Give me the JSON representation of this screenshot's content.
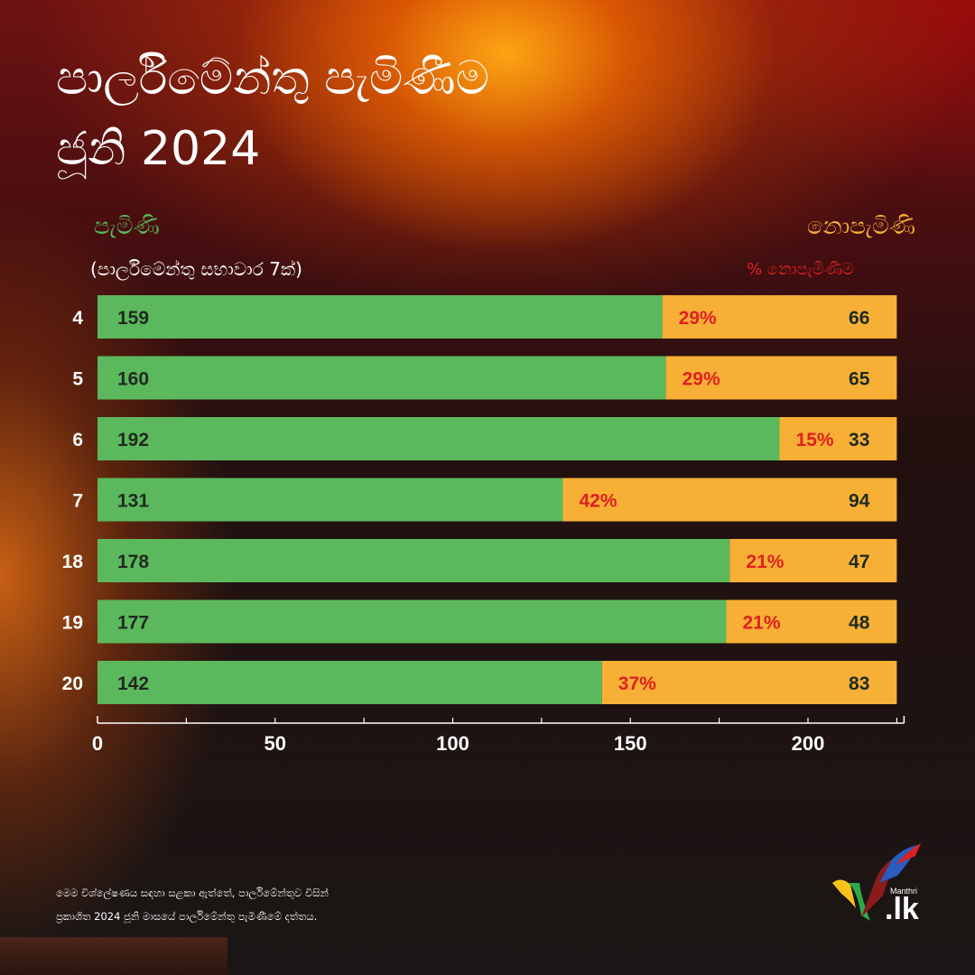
{
  "title": {
    "line1": "පාර්ලිමේන්තු පැමිණීම",
    "line2": "ජූනි 2024"
  },
  "legend": {
    "present_label": "පැමිණි",
    "present_sub": "(පාර්ලිමේන්තු සභාවාර 7ක්)",
    "absent_label": "නොපැමිණි",
    "absent_pct_label": "% නොපැමිණීම"
  },
  "colors": {
    "present": "#5cb85c",
    "absent": "#f7b035",
    "percent_text": "#e02020",
    "value_text": "#1f2a1f",
    "axis": "#ffffff"
  },
  "chart_data": {
    "type": "bar",
    "orientation": "horizontal",
    "stacked": true,
    "categories": [
      "4",
      "5",
      "6",
      "7",
      "18",
      "19",
      "20"
    ],
    "series": [
      {
        "name": "පැමිණි",
        "values": [
          159,
          160,
          192,
          131,
          178,
          177,
          142
        ]
      },
      {
        "name": "නොපැමිණි",
        "values": [
          66,
          65,
          33,
          94,
          47,
          48,
          83
        ]
      }
    ],
    "percent_absent_labels": [
      "29%",
      "29%",
      "15%",
      "42%",
      "21%",
      "21%",
      "37%"
    ],
    "xlim": [
      0,
      225
    ],
    "xticks": [
      0,
      50,
      100,
      150,
      200
    ],
    "grid": false
  },
  "footnote": {
    "line1": "මෙම විශ්ලේෂණය සඳහා සළකා ඇත්තේ, පාර්ලිමේන්තුව විසින්",
    "line2": "ප්‍රකාශිත 2024 ජූනි මාසයේ පාර්ලිමේන්තු පැමිණීමේ දත්තය."
  },
  "logo": {
    "small": "Manthri",
    "big": ".lk"
  }
}
